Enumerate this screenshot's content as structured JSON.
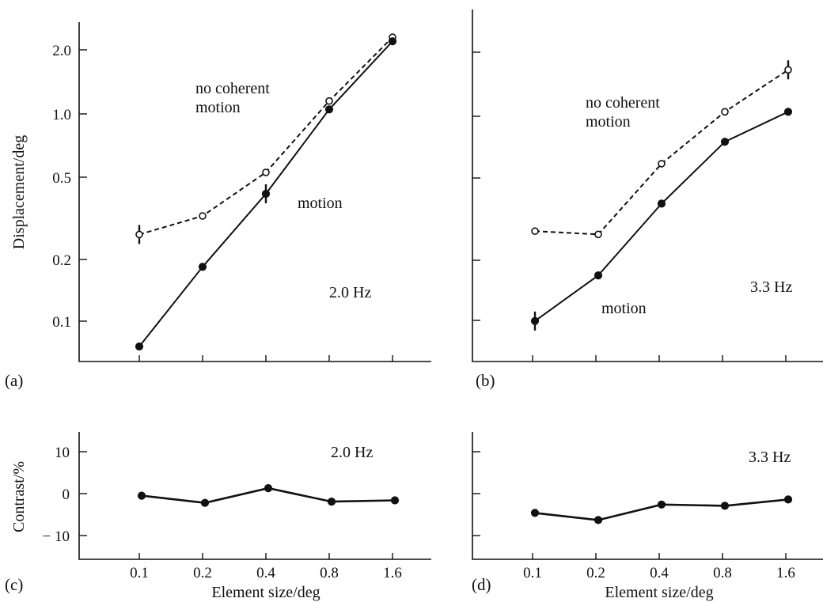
{
  "figure": {
    "panel_letters": [
      "(a)",
      "(b)",
      "(c)",
      "(d)"
    ],
    "ylabel_top": "Displacement/deg",
    "ylabel_bottom": "Contrast/%",
    "xlabel": "Element size/deg",
    "x_tick_labels": [
      "0.1",
      "0.2",
      "0.4",
      "0.8",
      "1.6"
    ],
    "y_tick_labels_top": [
      "2.0",
      "1.0",
      "0.5",
      "0.2",
      "0.1"
    ],
    "y_tick_labels_bottom": [
      "10",
      "0",
      "− 10"
    ]
  },
  "chart_data": [
    {
      "panel": "(a)",
      "type": "line",
      "xscale": "log",
      "yscale": "log",
      "xlabel": "",
      "ylabel": "Displacement/deg",
      "x": [
        0.1,
        0.2,
        0.4,
        0.8,
        1.6
      ],
      "xlim": [
        0.055,
        2.5
      ],
      "ylim": [
        0.065,
        2.8
      ],
      "frequency_label": "2.0 Hz",
      "region_labels": {
        "upper": "no coherent motion",
        "lower": "motion"
      },
      "series": [
        {
          "style": "dashed, open circles",
          "values": [
            0.27,
            0.33,
            0.53,
            1.15,
            2.3
          ],
          "error_bars": [
            true,
            false,
            false,
            false,
            false
          ]
        },
        {
          "style": "solid, filled circles",
          "values": [
            0.08,
            0.19,
            0.42,
            1.05,
            2.2
          ],
          "error_bars": [
            false,
            false,
            true,
            false,
            false
          ]
        }
      ]
    },
    {
      "panel": "(b)",
      "type": "line",
      "xscale": "log",
      "yscale": "log",
      "x": [
        0.1,
        0.2,
        0.4,
        0.8,
        1.6
      ],
      "xlim": [
        0.055,
        2.5
      ],
      "ylim": [
        0.065,
        2.8
      ],
      "frequency_label": "3.3 Hz",
      "region_labels": {
        "upper": "no coherent motion",
        "lower": "motion"
      },
      "series": [
        {
          "style": "dashed, open circles",
          "values": [
            0.29,
            0.28,
            0.6,
            1.05,
            1.65
          ],
          "error_bars": [
            false,
            false,
            false,
            false,
            true
          ]
        },
        {
          "style": "solid, filled circles",
          "values": [
            0.11,
            0.18,
            0.39,
            0.76,
            1.05
          ],
          "error_bars": [
            true,
            false,
            false,
            false,
            false
          ]
        }
      ]
    },
    {
      "panel": "(c)",
      "type": "line",
      "xscale": "log",
      "xlabel": "Element size/deg",
      "ylabel": "Contrast/%",
      "x": [
        0.1,
        0.2,
        0.4,
        0.8,
        1.6
      ],
      "xlim": [
        0.055,
        2.5
      ],
      "ylim": [
        -15,
        15
      ],
      "frequency_label": "2.0 Hz",
      "series": [
        {
          "style": "solid, filled circles",
          "values": [
            -0.5,
            -2.2,
            1.3,
            -1.9,
            -1.6
          ]
        }
      ]
    },
    {
      "panel": "(d)",
      "type": "line",
      "xscale": "log",
      "xlabel": "Element size/deg",
      "x": [
        0.1,
        0.2,
        0.4,
        0.8,
        1.6
      ],
      "xlim": [
        0.055,
        2.5
      ],
      "ylim": [
        -15,
        15
      ],
      "frequency_label": "3.3 Hz",
      "series": [
        {
          "style": "solid, filled circles",
          "values": [
            -4.6,
            -6.3,
            -2.6,
            -2.9,
            -1.4
          ]
        }
      ]
    }
  ]
}
